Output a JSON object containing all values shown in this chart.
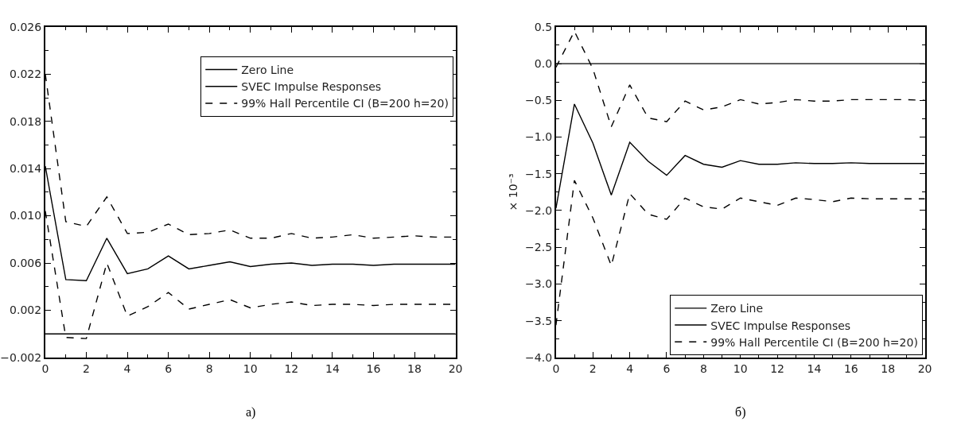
{
  "chart_data": [
    {
      "type": "line",
      "x": [
        0,
        1,
        2,
        3,
        4,
        5,
        6,
        7,
        8,
        9,
        10,
        11,
        12,
        13,
        14,
        15,
        16,
        17,
        18,
        19,
        20
      ],
      "xlim": [
        0,
        20
      ],
      "xticks": [
        0,
        2,
        4,
        6,
        8,
        10,
        12,
        14,
        16,
        18,
        20
      ],
      "ylim": [
        -0.002,
        0.026
      ],
      "yticks": [
        {
          "value": -0.002,
          "label": "−0.002"
        },
        0.002,
        0.006,
        {
          "value": 0.01,
          "label": "0.010"
        },
        0.014,
        0.018,
        0.022,
        0.026
      ],
      "grid": false,
      "legend": "top right",
      "marker": "none",
      "annotations": [
        "а)"
      ],
      "series": [
        {
          "name": "Zero Line",
          "color": "#000000",
          "line_style": "solid",
          "values": [
            0,
            0,
            0,
            0,
            0,
            0,
            0,
            0,
            0,
            0,
            0,
            0,
            0,
            0,
            0,
            0,
            0,
            0,
            0,
            0,
            0
          ]
        },
        {
          "name": "SVEC Impulse Responses",
          "color": "#000000",
          "line_style": "solid",
          "values": [
            0.0142,
            0.0046,
            0.0045,
            0.0081,
            0.0051,
            0.0055,
            0.0066,
            0.0055,
            0.0058,
            0.0061,
            0.0057,
            0.0059,
            0.006,
            0.0058,
            0.0059,
            0.0059,
            0.0058,
            0.0059,
            0.0059,
            0.0059,
            0.0059
          ]
        },
        {
          "name": "99% Hall Percentile CI (B=200 h=20)",
          "color": "#000000",
          "line_style": "dashed",
          "values": [
            0.022,
            0.0095,
            0.0091,
            0.0116,
            0.0085,
            0.0086,
            0.0093,
            0.0084,
            0.0085,
            0.0088,
            0.0081,
            0.0081,
            0.0085,
            0.0081,
            0.0082,
            0.0084,
            0.0081,
            0.0082,
            0.0083,
            0.0082,
            0.0082
          ]
        },
        {
          "color": "#000000",
          "line_style": "dashed",
          "values": [
            0.0104,
            -0.0003,
            -0.0004,
            0.006,
            0.0015,
            0.0023,
            0.0035,
            0.0021,
            0.0025,
            0.0029,
            0.0022,
            0.0025,
            0.0027,
            0.0024,
            0.0025,
            0.0025,
            0.0024,
            0.0025,
            0.0025,
            0.0025,
            0.0025
          ]
        }
      ]
    },
    {
      "type": "line",
      "ylabel": "× 10⁻³",
      "x": [
        0,
        1,
        2,
        3,
        4,
        5,
        6,
        7,
        8,
        9,
        10,
        11,
        12,
        13,
        14,
        15,
        16,
        17,
        18,
        19,
        20
      ],
      "xlim": [
        0,
        20
      ],
      "xticks": [
        0,
        2,
        4,
        6,
        8,
        10,
        12,
        14,
        16,
        18,
        20
      ],
      "ylim": [
        -4.0,
        0.5
      ],
      "yticks": [
        {
          "value": -4.0,
          "label": "−4.0"
        },
        {
          "value": -3.5,
          "label": "−3.5"
        },
        {
          "value": -3.0,
          "label": "−3.0"
        },
        {
          "value": -2.5,
          "label": "−2.5"
        },
        {
          "value": -2.0,
          "label": "−2.0"
        },
        {
          "value": -1.5,
          "label": "−1.5"
        },
        {
          "value": -1.0,
          "label": "−1.0"
        },
        {
          "value": -0.5,
          "label": "−0.5"
        },
        {
          "value": 0.0,
          "label": "0.0"
        },
        0.5
      ],
      "grid": false,
      "legend": "bottom right",
      "marker": "none",
      "annotations": [
        "б)"
      ],
      "series": [
        {
          "name": "Zero Line",
          "color": "#000000",
          "line_style": "solid",
          "values": [
            0,
            0,
            0,
            0,
            0,
            0,
            0,
            0,
            0,
            0,
            0,
            0,
            0,
            0,
            0,
            0,
            0,
            0,
            0,
            0,
            0
          ]
        },
        {
          "name": "SVEC Impulse Responses",
          "color": "#000000",
          "line_style": "solid",
          "values": [
            -1.97,
            -0.55,
            -1.08,
            -1.79,
            -1.07,
            -1.33,
            -1.52,
            -1.25,
            -1.37,
            -1.41,
            -1.32,
            -1.37,
            -1.37,
            -1.35,
            -1.36,
            -1.36,
            -1.35,
            -1.36,
            -1.36,
            -1.36,
            -1.36
          ]
        },
        {
          "name": "99% Hall Percentile CI (B=200 h=20)",
          "color": "#000000",
          "line_style": "dashed",
          "values": [
            -0.05,
            0.44,
            -0.07,
            -0.86,
            -0.29,
            -0.74,
            -0.79,
            -0.51,
            -0.63,
            -0.59,
            -0.49,
            -0.55,
            -0.53,
            -0.49,
            -0.51,
            -0.51,
            -0.49,
            -0.49,
            -0.49,
            -0.49,
            -0.5
          ]
        },
        {
          "color": "#000000",
          "line_style": "dashed",
          "values": [
            -3.56,
            -1.59,
            -2.1,
            -2.75,
            -1.77,
            -2.05,
            -2.12,
            -1.83,
            -1.95,
            -1.98,
            -1.83,
            -1.88,
            -1.93,
            -1.83,
            -1.85,
            -1.88,
            -1.83,
            -1.84,
            -1.84,
            -1.84,
            -1.84
          ]
        }
      ]
    }
  ]
}
